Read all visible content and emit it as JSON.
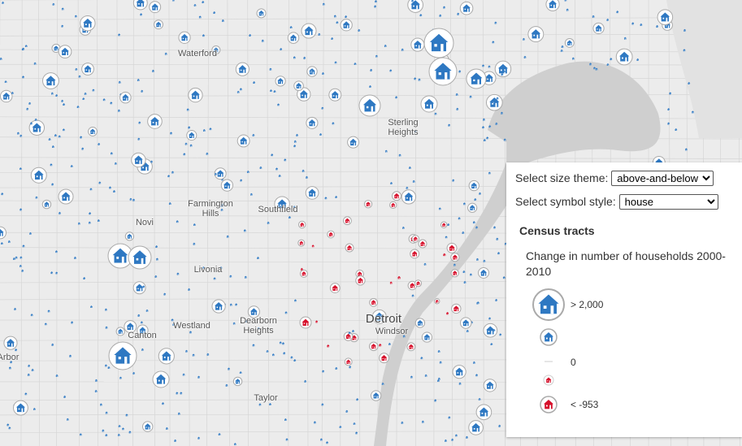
{
  "map": {
    "cities": [
      {
        "name": "Waterford"
      },
      {
        "name": "Sterling\nHeights"
      },
      {
        "name": "Farmington\nHills"
      },
      {
        "name": "Southfield"
      },
      {
        "name": "Novi"
      },
      {
        "name": "Livonia"
      },
      {
        "name": "Dearborn\nHeights"
      },
      {
        "name": "Westland"
      },
      {
        "name": "Canton"
      },
      {
        "name": "Detroit"
      },
      {
        "name": "Windsor"
      },
      {
        "name": "Taylor"
      },
      {
        "name": "Arbor"
      }
    ],
    "colors": {
      "increase": "#2e78c2",
      "decrease": "#d7102b",
      "water": "#cfcfcf",
      "land": "#ececec"
    }
  },
  "panel": {
    "size_theme_label": "Select size theme:",
    "size_theme_value": "above-and-below",
    "symbol_style_label": "Select symbol style:",
    "symbol_style_value": "house",
    "layer_title": "Census tracts",
    "field_title": "Change in number of households 2000-2010",
    "legend": [
      {
        "label": "> 2,000",
        "value": 2000
      },
      {
        "label": "",
        "value": 1000
      },
      {
        "label": "0",
        "value": 0
      },
      {
        "label": "",
        "value": -476
      },
      {
        "label": "< -953",
        "value": -953
      }
    ]
  }
}
